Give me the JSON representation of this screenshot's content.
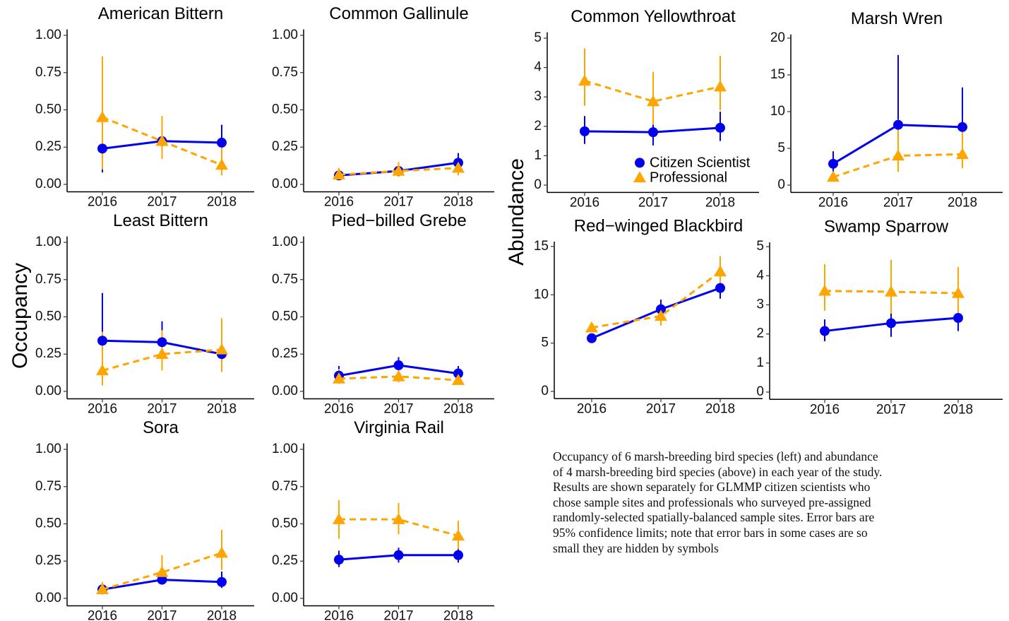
{
  "axis_titles": {
    "occupancy": "Occupancy",
    "abundance": "Abundance"
  },
  "legend": [
    {
      "name": "Citizen Scientist",
      "color": "#0000ee",
      "marker": "circle",
      "dashed": false
    },
    {
      "name": "Professional",
      "color": "#ffa500",
      "marker": "triangle",
      "dashed": true
    }
  ],
  "caption": [
    "Occupancy of 6 marsh-breeding bird species (left) and abundance",
    "of 4 marsh-breeding bird species (above) in each year of the study.",
    "Results are shown separately for GLMMP citizen scientists who",
    "chose sample sites and professionals who surveyed pre-assigned",
    "randomly-selected spatially-balanced sample sites. Error bars are",
    "95% confidence limits; note that error bars in some cases are so",
    "small they are hidden by symbols"
  ],
  "chart_data": [
    {
      "type": "line",
      "title": "American Bittern",
      "categories": [
        "2016",
        "2017",
        "2018"
      ],
      "ylim": [
        -0.05,
        1.04
      ],
      "yticks": [
        {
          "value": 0,
          "label": "0.00"
        },
        {
          "value": 0.25,
          "label": "0.25"
        },
        {
          "value": 0.5,
          "label": "0.50"
        },
        {
          "value": 0.75,
          "label": "0.75"
        },
        {
          "value": 1,
          "label": "1.00"
        }
      ],
      "series": [
        {
          "values": [
            0.24,
            0.29,
            0.28
          ],
          "lower": [
            0.08,
            0.2,
            0.18
          ],
          "upper": [
            0.55,
            0.41,
            0.4
          ]
        },
        {
          "values": [
            0.45,
            0.29,
            0.13
          ],
          "lower": [
            0.1,
            0.17,
            0.06
          ],
          "upper": [
            0.86,
            0.46,
            0.26
          ]
        }
      ]
    },
    {
      "type": "line",
      "title": "Common Gallinule",
      "categories": [
        "2016",
        "2017",
        "2018"
      ],
      "ylim": [
        -0.05,
        1.04
      ],
      "yticks": [
        {
          "value": 0,
          "label": "0.00"
        },
        {
          "value": 0.25,
          "label": "0.25"
        },
        {
          "value": 0.5,
          "label": "0.50"
        },
        {
          "value": 0.75,
          "label": "0.75"
        },
        {
          "value": 1,
          "label": "1.00"
        }
      ],
      "series": [
        {
          "values": [
            0.06,
            0.09,
            0.145
          ],
          "lower": [
            0.04,
            0.07,
            0.1
          ],
          "upper": [
            0.09,
            0.12,
            0.21
          ]
        },
        {
          "values": [
            0.065,
            0.09,
            0.11
          ],
          "lower": [
            0.03,
            0.05,
            0.06
          ],
          "upper": [
            0.11,
            0.15,
            0.17
          ]
        }
      ]
    },
    {
      "type": "line",
      "title": "Least Bittern",
      "categories": [
        "2016",
        "2017",
        "2018"
      ],
      "ylim": [
        -0.05,
        1.04
      ],
      "yticks": [
        {
          "value": 0,
          "label": "0.00"
        },
        {
          "value": 0.25,
          "label": "0.25"
        },
        {
          "value": 0.5,
          "label": "0.50"
        },
        {
          "value": 0.75,
          "label": "0.75"
        },
        {
          "value": 1,
          "label": "1.00"
        }
      ],
      "series": [
        {
          "values": [
            0.34,
            0.33,
            0.25
          ],
          "lower": [
            0.14,
            0.21,
            0.14
          ],
          "upper": [
            0.66,
            0.47,
            0.4
          ]
        },
        {
          "values": [
            0.14,
            0.25,
            0.28
          ],
          "lower": [
            0.04,
            0.14,
            0.13
          ],
          "upper": [
            0.4,
            0.41,
            0.49
          ]
        }
      ]
    },
    {
      "type": "line",
      "title": "Pied−billed Grebe",
      "categories": [
        "2016",
        "2017",
        "2018"
      ],
      "ylim": [
        -0.05,
        1.04
      ],
      "yticks": [
        {
          "value": 0,
          "label": "0.00"
        },
        {
          "value": 0.25,
          "label": "0.25"
        },
        {
          "value": 0.5,
          "label": "0.50"
        },
        {
          "value": 0.75,
          "label": "0.75"
        },
        {
          "value": 1,
          "label": "1.00"
        }
      ],
      "series": [
        {
          "values": [
            0.105,
            0.175,
            0.12
          ],
          "lower": [
            0.06,
            0.13,
            0.08
          ],
          "upper": [
            0.17,
            0.23,
            0.17
          ]
        },
        {
          "values": [
            0.085,
            0.1,
            0.075
          ],
          "lower": [
            0.05,
            0.06,
            0.05
          ],
          "upper": [
            0.15,
            0.15,
            0.11
          ]
        }
      ]
    },
    {
      "type": "line",
      "title": "Sora",
      "categories": [
        "2016",
        "2017",
        "2018"
      ],
      "ylim": [
        -0.05,
        1.04
      ],
      "yticks": [
        {
          "value": 0,
          "label": "0.00"
        },
        {
          "value": 0.25,
          "label": "0.25"
        },
        {
          "value": 0.5,
          "label": "0.50"
        },
        {
          "value": 0.75,
          "label": "0.75"
        },
        {
          "value": 1,
          "label": "1.00"
        }
      ],
      "series": [
        {
          "values": [
            0.06,
            0.125,
            0.11
          ],
          "lower": [
            0.04,
            0.1,
            0.07
          ],
          "upper": [
            0.08,
            0.16,
            0.18
          ]
        },
        {
          "values": [
            0.06,
            0.175,
            0.305
          ],
          "lower": [
            0.03,
            0.11,
            0.19
          ],
          "upper": [
            0.11,
            0.29,
            0.46
          ]
        }
      ]
    },
    {
      "type": "line",
      "title": "Virginia Rail",
      "categories": [
        "2016",
        "2017",
        "2018"
      ],
      "ylim": [
        -0.05,
        1.04
      ],
      "yticks": [
        {
          "value": 0,
          "label": "0.00"
        },
        {
          "value": 0.25,
          "label": "0.25"
        },
        {
          "value": 0.5,
          "label": "0.50"
        },
        {
          "value": 0.75,
          "label": "0.75"
        },
        {
          "value": 1,
          "label": "1.00"
        }
      ],
      "series": [
        {
          "values": [
            0.26,
            0.29,
            0.29
          ],
          "lower": [
            0.21,
            0.24,
            0.24
          ],
          "upper": [
            0.32,
            0.34,
            0.34
          ]
        },
        {
          "values": [
            0.53,
            0.53,
            0.42
          ],
          "lower": [
            0.4,
            0.43,
            0.33
          ],
          "upper": [
            0.66,
            0.64,
            0.52
          ]
        }
      ]
    },
    {
      "type": "line",
      "title": "Common Yellowthroat",
      "categories": [
        "2016",
        "2017",
        "2018"
      ],
      "ylim": [
        -0.25,
        5.2
      ],
      "yticks": [
        0,
        1,
        2,
        3,
        4,
        5
      ],
      "legend": true,
      "series": [
        {
          "values": [
            1.83,
            1.8,
            1.95
          ],
          "lower": [
            1.4,
            1.35,
            1.5
          ],
          "upper": [
            2.35,
            2.4,
            2.5
          ]
        },
        {
          "values": [
            3.55,
            2.85,
            3.35
          ],
          "lower": [
            2.7,
            2.05,
            2.55
          ],
          "upper": [
            4.65,
            3.85,
            4.4
          ]
        }
      ]
    },
    {
      "type": "line",
      "title": "Marsh Wren",
      "categories": [
        "2016",
        "2017",
        "2018"
      ],
      "ylim": [
        -1,
        20.5
      ],
      "yticks": [
        0,
        5,
        10,
        15,
        20
      ],
      "series": [
        {
          "values": [
            2.9,
            8.2,
            7.9
          ],
          "lower": [
            1.8,
            4.2,
            4.3
          ],
          "upper": [
            4.6,
            17.7,
            13.3
          ]
        },
        {
          "values": [
            1.1,
            4.0,
            4.2
          ],
          "lower": [
            0.6,
            1.8,
            2.3
          ],
          "upper": [
            1.8,
            8.9,
            7.7
          ]
        }
      ]
    },
    {
      "type": "line",
      "title": "Red−winged Blackbird",
      "categories": [
        "2016",
        "2017",
        "2018"
      ],
      "ylim": [
        -0.75,
        15.5
      ],
      "yticks": [
        0,
        5,
        10,
        15
      ],
      "series": [
        {
          "values": [
            5.5,
            8.5,
            10.7
          ],
          "lower": [
            5.2,
            7.5,
            9.6
          ],
          "upper": [
            5.8,
            9.5,
            11.8
          ]
        },
        {
          "values": [
            6.6,
            7.8,
            12.4
          ],
          "lower": [
            6.2,
            6.8,
            11.1
          ],
          "upper": [
            7.0,
            8.8,
            14.0
          ]
        }
      ]
    },
    {
      "type": "line",
      "title": "Swamp Sparrow",
      "categories": [
        "2016",
        "2017",
        "2018"
      ],
      "ylim": [
        -0.25,
        5.15
      ],
      "yticks": [
        0,
        1,
        2,
        3,
        4,
        5
      ],
      "series": [
        {
          "values": [
            2.1,
            2.37,
            2.55
          ],
          "lower": [
            1.75,
            1.9,
            2.1
          ],
          "upper": [
            2.5,
            3.0,
            3.1
          ]
        },
        {
          "values": [
            3.48,
            3.45,
            3.4
          ],
          "lower": [
            2.8,
            2.7,
            2.6
          ],
          "upper": [
            4.4,
            4.55,
            4.3
          ]
        }
      ]
    }
  ]
}
